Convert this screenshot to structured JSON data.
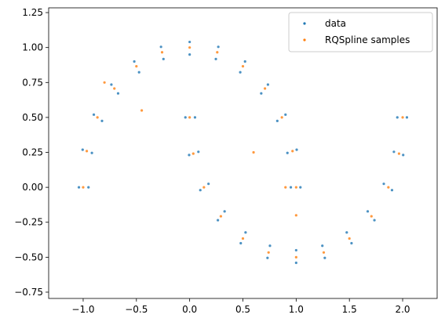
{
  "chart_data": {
    "type": "scatter",
    "xlim": [
      -1.324,
      2.324
    ],
    "ylim": [
      -0.795,
      1.284
    ],
    "xticks": [
      {
        "value": -1.0,
        "label": "−1.0"
      },
      {
        "value": -0.5,
        "label": "−0.5"
      },
      {
        "value": 0.0,
        "label": "0.0"
      },
      {
        "value": 0.5,
        "label": "0.5"
      },
      {
        "value": 1.0,
        "label": "1.0"
      },
      {
        "value": 1.5,
        "label": "1.5"
      },
      {
        "value": 2.0,
        "label": "2.0"
      }
    ],
    "yticks": [
      {
        "value": -0.75,
        "label": "−0.75"
      },
      {
        "value": -0.5,
        "label": "−0.50"
      },
      {
        "value": -0.25,
        "label": "−0.25"
      },
      {
        "value": 0.0,
        "label": "0.00"
      },
      {
        "value": 0.25,
        "label": "0.25"
      },
      {
        "value": 0.5,
        "label": "0.50"
      },
      {
        "value": 0.75,
        "label": "0.75"
      },
      {
        "value": 1.0,
        "label": "1.00"
      },
      {
        "value": 1.25,
        "label": "1.25"
      }
    ],
    "legend": "upper right",
    "series": [
      {
        "name": "data",
        "color": "#1f77b4",
        "x": [
          1.04,
          1.005,
          0.9,
          0.735,
          0.52,
          0.269,
          0,
          -0.269,
          -0.52,
          -0.735,
          -0.9,
          -1.005,
          -1.04,
          0.95,
          0.918,
          0.823,
          0.672,
          0.475,
          0.246,
          0,
          -0.246,
          -0.475,
          -0.672,
          -0.823,
          -0.918,
          -0.95,
          -0.04,
          -0.005,
          0.1,
          0.265,
          0.48,
          0.731,
          1,
          1.269,
          1.52,
          1.735,
          1.9,
          2.005,
          2.04,
          0.05,
          0.082,
          0.177,
          0.328,
          0.525,
          0.754,
          1,
          1.246,
          1.475,
          1.672,
          1.823,
          1.918,
          1.95
        ],
        "values": [
          0,
          0.269,
          0.52,
          0.735,
          0.9,
          1.005,
          1.04,
          1.005,
          0.9,
          0.735,
          0.52,
          0.269,
          0,
          0,
          0.246,
          0.475,
          0.672,
          0.823,
          0.918,
          0.95,
          0.918,
          0.823,
          0.672,
          0.475,
          0.246,
          0,
          0.5,
          0.231,
          -0.02,
          -0.235,
          -0.4,
          -0.505,
          -0.54,
          -0.505,
          -0.4,
          -0.235,
          -0.02,
          0.231,
          0.5,
          0.5,
          0.254,
          0.025,
          -0.172,
          -0.323,
          -0.418,
          -0.45,
          -0.418,
          -0.323,
          -0.172,
          0.025,
          0.254,
          0.5
        ]
      },
      {
        "name": "RQSpline samples",
        "color": "#ff7f0e",
        "x": [
          1,
          0.966,
          0.866,
          0.707,
          0.5,
          0.259,
          0,
          -0.259,
          -0.5,
          -0.707,
          -0.866,
          -0.966,
          -1,
          0,
          0.034,
          0.134,
          0.293,
          0.5,
          0.741,
          1,
          1.259,
          1.5,
          1.707,
          1.866,
          1.966,
          2,
          0.6,
          1.0,
          -0.8,
          0.9,
          -0.45
        ],
        "values": [
          0,
          0.259,
          0.5,
          0.707,
          0.866,
          0.966,
          1,
          0.966,
          0.866,
          0.707,
          0.5,
          0.259,
          0,
          0.5,
          0.241,
          0,
          -0.207,
          -0.366,
          -0.466,
          -0.5,
          -0.466,
          -0.366,
          -0.207,
          0,
          0.241,
          0.5,
          0.25,
          -0.2,
          0.75,
          0.0,
          0.55
        ]
      }
    ]
  }
}
